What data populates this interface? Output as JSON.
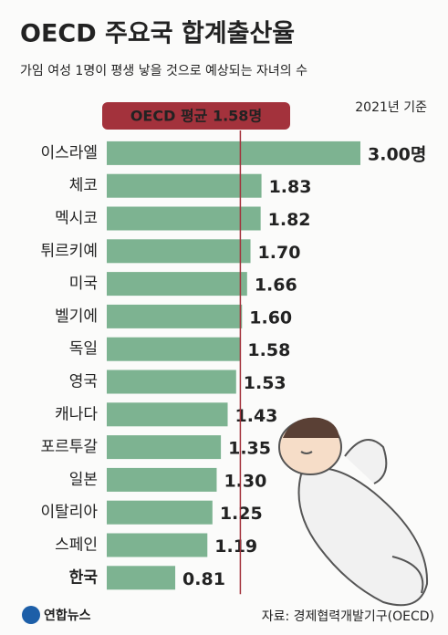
{
  "chart_data": {
    "type": "bar",
    "orientation": "horizontal",
    "title": "OECD 주요국 합계출산율",
    "subtitle": "가임 여성 1명이 평생 낳을 것으로 예상되는 자녀의 수",
    "note": "2021년 기준",
    "source": "자료: 경제협력개발기구(OECD)",
    "logo": "연합뉴스",
    "categories": [
      "이스라엘",
      "체코",
      "멕시코",
      "튀르키예",
      "미국",
      "벨기에",
      "독일",
      "영국",
      "캐나다",
      "포르투갈",
      "일본",
      "이탈리아",
      "스페인",
      "한국"
    ],
    "values": [
      3.0,
      1.83,
      1.82,
      1.7,
      1.66,
      1.6,
      1.58,
      1.53,
      1.43,
      1.35,
      1.3,
      1.25,
      1.19,
      0.81
    ],
    "value_labels": [
      "3.00명",
      "1.83",
      "1.82",
      "1.70",
      "1.66",
      "1.60",
      "1.58",
      "1.53",
      "1.43",
      "1.35",
      "1.30",
      "1.25",
      "1.19",
      "0.81"
    ],
    "color": "#7db391",
    "xlim": [
      0,
      3
    ],
    "average": {
      "value": 1.58,
      "label": "OECD 평균 1.58명",
      "color": "#a3323c"
    }
  }
}
